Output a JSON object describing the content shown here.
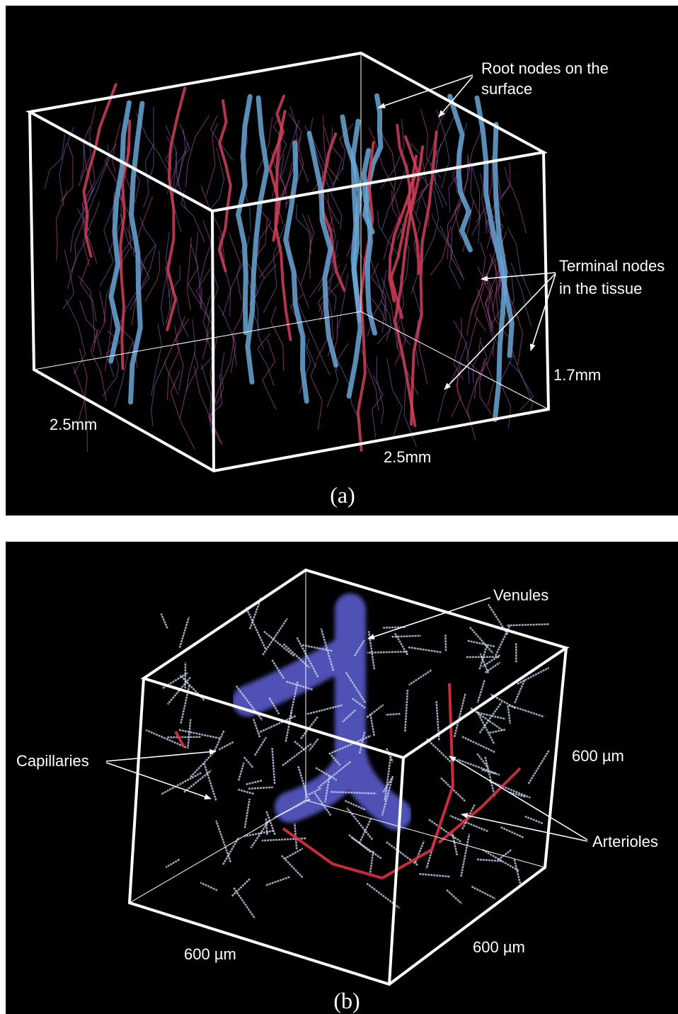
{
  "panels": [
    {
      "caption": "(a)",
      "root_label": [
        "Root nodes on the",
        "surface"
      ],
      "terminal_label": [
        "Terminal nodes",
        "in the tissue"
      ],
      "depth": "1.7mm",
      "width_left": "2.5mm",
      "width_front": "2.5mm"
    },
    {
      "caption": "(b)",
      "venules": "Venules",
      "capillaries": "Capillaries",
      "arterioles": "Arterioles",
      "depth": "600 µm",
      "width_left": "600 µm",
      "width_front": "600 µm"
    }
  ]
}
